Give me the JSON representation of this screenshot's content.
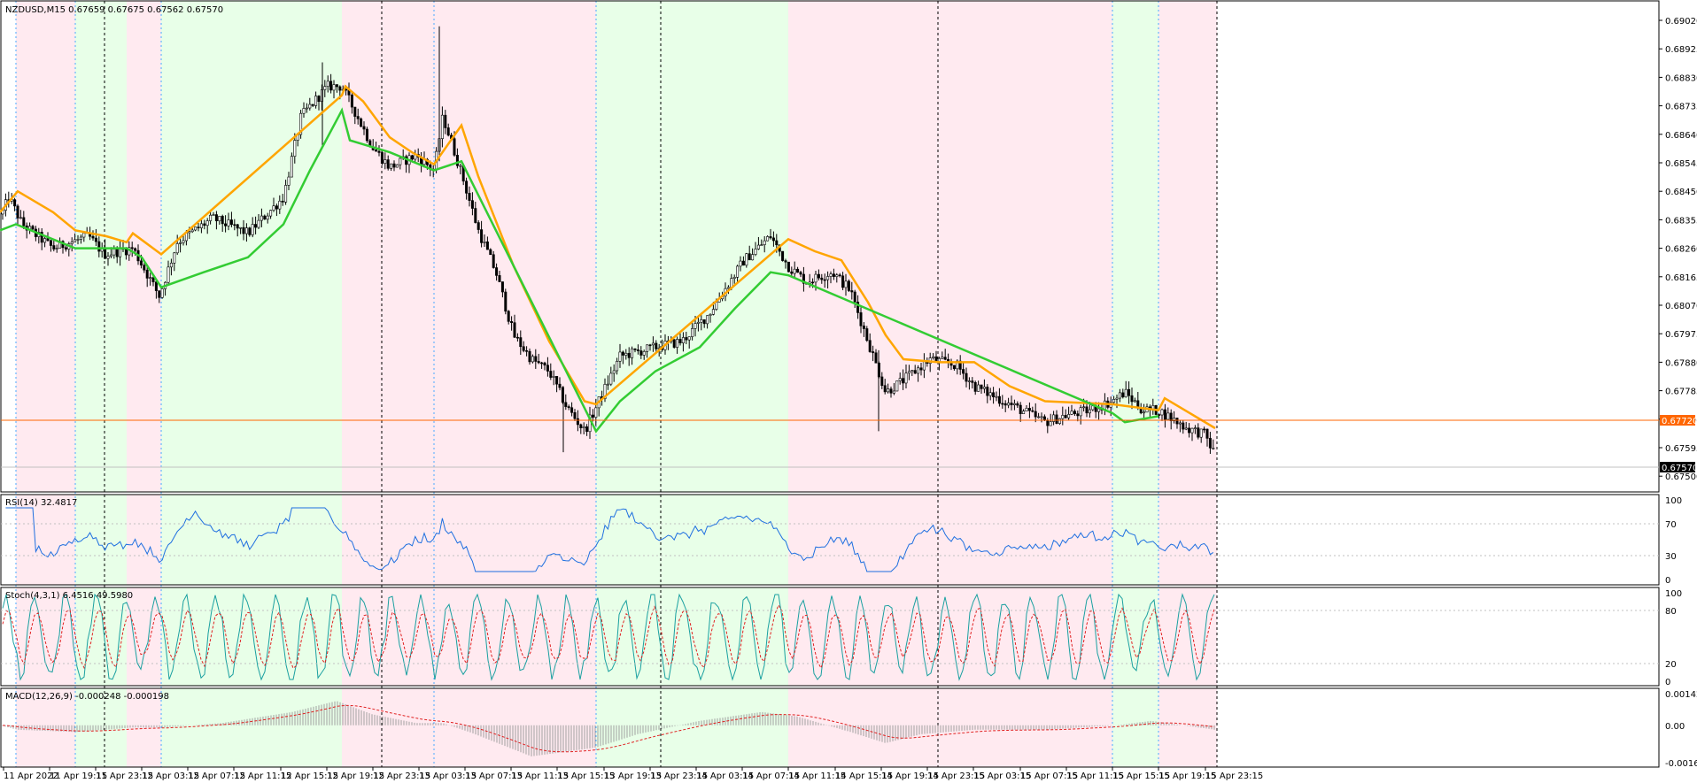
{
  "main": {
    "header": "NZDUSD,M15  0.67659 0.67675 0.67562 0.67570",
    "price_labels": [
      "0.69020",
      "0.68925",
      "0.68830",
      "0.68735",
      "0.68640",
      "0.68545",
      "0.68450",
      "0.68355",
      "0.68260",
      "0.68165",
      "0.68070",
      "0.67975",
      "0.67880",
      "0.67785",
      "0.67690",
      "0.67595",
      "0.67500"
    ],
    "hline_label": "0.67720",
    "current_label": "0.67570",
    "hline_color": "#ff6600",
    "bull_band_color": "#e8ffe8",
    "bear_band_color": "#ffeaf0",
    "upper_line_color": "#ffa500",
    "lower_line_color": "#33cc33"
  },
  "rsi": {
    "header": "RSI(14) 32.4817",
    "levels": [
      "100",
      "70",
      "30",
      "0"
    ],
    "color": "#1e6fe0"
  },
  "stoch": {
    "header": "Stoch(4,3,1) 6.4516 49.5980",
    "levels": [
      "100",
      "80",
      "20",
      "0"
    ],
    "main_color": "#1aa0a0",
    "signal_color": "#e02020"
  },
  "macd": {
    "header": "MACD(12,26,9) -0.000248 -0.000198",
    "levels": [
      "0.001427",
      "0.00",
      "-0.001682"
    ],
    "hist_color": "#a0a0a0",
    "signal_color": "#e02020"
  },
  "time_labels": [
    "11 Apr 2022",
    "11 Apr 19:15",
    "11 Apr 23:15",
    "12 Apr 03:15",
    "12 Apr 07:15",
    "12 Apr 11:15",
    "12 Apr 15:15",
    "12 Apr 19:15",
    "12 Apr 23:15",
    "13 Apr 03:15",
    "13 Apr 07:15",
    "13 Apr 11:15",
    "13 Apr 15:15",
    "13 Apr 19:15",
    "13 Apr 23:15",
    "14 Apr 03:15",
    "14 Apr 07:15",
    "14 Apr 11:15",
    "14 Apr 15:15",
    "14 Apr 19:15",
    "14 Apr 23:15",
    "15 Apr 03:15",
    "15 Apr 07:15",
    "15 Apr 11:15",
    "15 Apr 15:15",
    "15 Apr 19:15",
    "15 Apr 23:15"
  ]
}
